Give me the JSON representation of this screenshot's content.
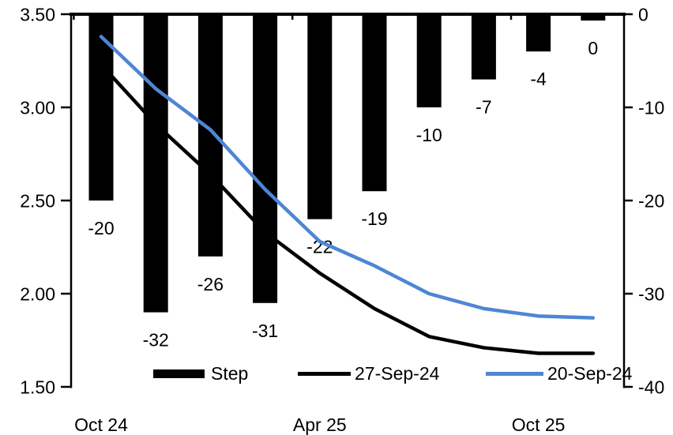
{
  "chart_data": {
    "type": "combo-bar-line",
    "title": "",
    "n_categories": 10,
    "x_tick_labels": [
      {
        "label": "Oct 24",
        "category_index": 0
      },
      {
        "label": "Apr 25",
        "category_index": 4
      },
      {
        "label": "Oct 25",
        "category_index": 8
      }
    ],
    "bar_series": {
      "name": "Step",
      "axis": "right",
      "unit": "bp",
      "color": "#000000",
      "values": [
        -20,
        -32,
        -26,
        -31,
        -22,
        -19,
        -10,
        -7,
        -4,
        0
      ],
      "data_labels": [
        "-20",
        "-32",
        "-26",
        "-31",
        "-22",
        "-19",
        "-10",
        "-7",
        "-4",
        "0"
      ]
    },
    "line_series": [
      {
        "name": "27-Sep-24",
        "axis": "left",
        "color": "#000000",
        "values": [
          3.23,
          2.91,
          2.64,
          2.33,
          2.11,
          1.92,
          1.77,
          1.71,
          1.68,
          1.68
        ]
      },
      {
        "name": "20-Sep-24",
        "axis": "left",
        "color": "#4E86D4",
        "values": [
          3.38,
          3.1,
          2.88,
          2.56,
          2.28,
          2.15,
          2.0,
          1.92,
          1.88,
          1.87
        ]
      }
    ],
    "left_axis": {
      "min": 1.5,
      "max": 3.5,
      "tick_step": 0.5,
      "tick_labels": [
        "3.50",
        "3.00",
        "2.50",
        "2.00",
        "1.50"
      ]
    },
    "right_axis": {
      "min": -40,
      "max": 0,
      "tick_step": 10,
      "tick_labels": [
        "0",
        "-10",
        "-20",
        "-30",
        "-40"
      ]
    },
    "legend": [
      {
        "label": "Step",
        "type": "bar",
        "color": "#000000"
      },
      {
        "label": "27-Sep-24",
        "type": "line",
        "color": "#000000"
      },
      {
        "label": "20-Sep-24",
        "type": "line",
        "color": "#4E86D4"
      }
    ],
    "grid": false,
    "legend_position": "bottom"
  }
}
